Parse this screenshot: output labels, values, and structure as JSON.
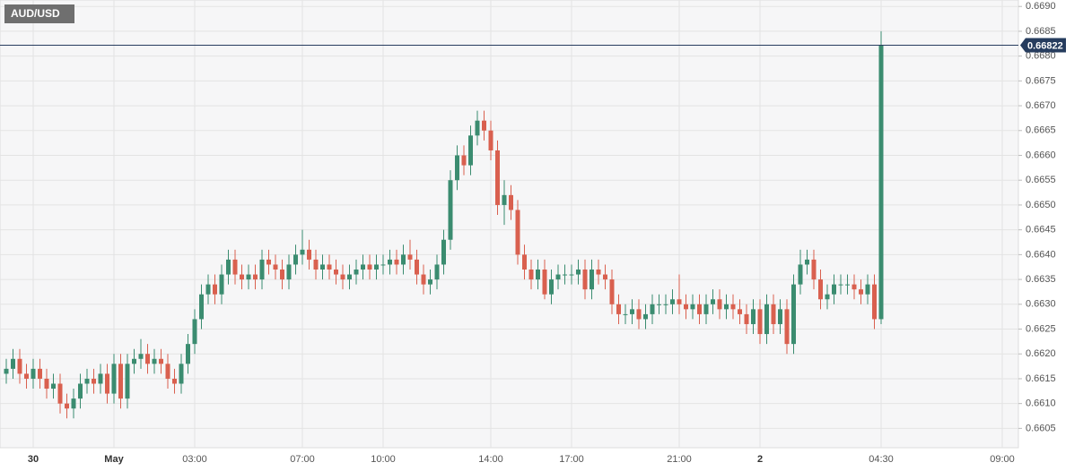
{
  "chart_data": {
    "type": "candlestick",
    "title": "AUD/USD",
    "up_color": "#3b8c70",
    "down_color": "#d9604f",
    "price_line_color": "#263c5e",
    "grid": true,
    "current_price": 0.66822,
    "ylim": [
      0.66011,
      0.66913
    ],
    "yticks": [
      0.6605,
      {
        "value": 0.661,
        "label": "0.6610"
      },
      0.6615,
      {
        "value": 0.662,
        "label": "0.6620"
      },
      0.6625,
      {
        "value": 0.663,
        "label": "0.6630"
      },
      0.6635,
      {
        "value": 0.664,
        "label": "0.6640"
      },
      0.6645,
      {
        "value": 0.665,
        "label": "0.6650"
      },
      0.6655,
      {
        "value": 0.666,
        "label": "0.6660"
      },
      0.6665,
      {
        "value": 0.667,
        "label": "0.6670"
      },
      0.6675,
      {
        "value": 0.668,
        "label": "0.6680"
      },
      0.6685,
      {
        "value": 0.669,
        "label": "0.6690"
      }
    ],
    "categories": [
      null,
      null,
      null,
      null,
      "30",
      null,
      null,
      null,
      null,
      null,
      null,
      null,
      null,
      null,
      null,
      null,
      "May",
      null,
      null,
      null,
      null,
      null,
      null,
      null,
      null,
      null,
      null,
      null,
      "03:00",
      null,
      null,
      null,
      null,
      null,
      null,
      null,
      null,
      null,
      null,
      null,
      null,
      null,
      null,
      null,
      "07:00",
      null,
      null,
      null,
      null,
      null,
      null,
      null,
      null,
      null,
      null,
      null,
      "10:00",
      null,
      null,
      null,
      null,
      null,
      null,
      null,
      null,
      null,
      null,
      null,
      null,
      null,
      null,
      null,
      "14:00",
      null,
      null,
      null,
      null,
      null,
      null,
      null,
      null,
      null,
      null,
      null,
      "17:00",
      null,
      null,
      null,
      null,
      null,
      null,
      null,
      null,
      null,
      null,
      null,
      null,
      null,
      null,
      null,
      "21:00",
      null,
      null,
      null,
      null,
      null,
      null,
      null,
      null,
      null,
      null,
      null,
      "2",
      null,
      null,
      null,
      null,
      null,
      null,
      null,
      null,
      null,
      null,
      null,
      null,
      null,
      null,
      null,
      null,
      null,
      "04:30",
      null,
      null,
      null,
      null,
      null,
      null,
      null,
      null,
      null,
      null,
      null,
      null,
      null,
      null,
      null,
      null,
      null,
      "09:00",
      null
    ],
    "open": [
      0.6616,
      0.6617,
      0.6619,
      0.6616,
      0.6615,
      0.6617,
      0.6615,
      0.6613,
      0.6614,
      0.661,
      0.6609,
      0.6611,
      0.6614,
      0.6615,
      0.6614,
      0.6616,
      0.6612,
      0.6618,
      0.6611,
      0.6618,
      0.6619,
      0.662,
      0.6618,
      0.6619,
      0.6618,
      0.6615,
      0.6614,
      0.6618,
      0.6622,
      0.6627,
      0.6632,
      0.6634,
      0.6632,
      0.6636,
      0.6639,
      0.6636,
      0.6635,
      0.6636,
      0.6635,
      0.6639,
      0.6638,
      0.6637,
      0.6635,
      0.6638,
      0.664,
      0.6641,
      0.6639,
      0.6637,
      0.6638,
      0.6637,
      0.6636,
      0.6635,
      0.6636,
      0.6637,
      0.6638,
      0.6637,
      0.6638,
      0.6638,
      0.6639,
      0.6638,
      0.664,
      0.6639,
      0.6636,
      0.6634,
      0.6635,
      0.6638,
      0.6643,
      0.6655,
      0.666,
      0.6658,
      0.6664,
      0.6667,
      0.6665,
      0.6661,
      0.665,
      0.6652,
      0.6649,
      0.664,
      0.6637,
      0.6635,
      0.6637,
      0.6632,
      0.6635,
      0.6636,
      0.6636,
      0.6636,
      0.6637,
      0.6633,
      0.6637,
      0.6636,
      0.6635,
      0.663,
      0.6628,
      0.6628,
      0.6629,
      0.6627,
      0.6628,
      0.663,
      0.663,
      0.663,
      0.6631,
      0.663,
      0.6629,
      0.663,
      0.6628,
      0.663,
      0.6631,
      0.6629,
      0.663,
      0.6629,
      0.6628,
      0.6626,
      0.6629,
      0.6624,
      0.663,
      0.6626,
      0.6629,
      0.6622,
      0.6634,
      0.6638,
      0.6639,
      0.6635,
      0.6631,
      0.6632,
      0.6634,
      0.6634,
      0.6634,
      0.6633,
      0.6632,
      0.6634,
      0.6627,
      null,
      null,
      null,
      null,
      null,
      null,
      null,
      null,
      null,
      null,
      null,
      null,
      null,
      null,
      null,
      null,
      null,
      null,
      null
    ],
    "high": [
      0.6619,
      0.6621,
      0.6621,
      0.6618,
      0.6619,
      0.6619,
      0.6617,
      0.6616,
      0.6616,
      0.6612,
      0.6613,
      0.6616,
      0.6617,
      0.6617,
      0.6618,
      0.6618,
      0.662,
      0.662,
      0.662,
      0.6621,
      0.6623,
      0.6622,
      0.6621,
      0.6621,
      0.662,
      0.6617,
      0.662,
      0.6624,
      0.6629,
      0.6634,
      0.6636,
      0.6636,
      0.6638,
      0.6641,
      0.6641,
      0.6638,
      0.6638,
      0.6638,
      0.6641,
      0.6641,
      0.664,
      0.6639,
      0.664,
      0.6642,
      0.6645,
      0.6643,
      0.6641,
      0.664,
      0.664,
      0.6639,
      0.6638,
      0.6638,
      0.6639,
      0.664,
      0.664,
      0.664,
      0.664,
      0.6641,
      0.6641,
      0.6642,
      0.6643,
      0.6641,
      0.6638,
      0.6637,
      0.664,
      0.6645,
      0.6657,
      0.6662,
      0.6662,
      0.6666,
      0.6669,
      0.6669,
      0.6667,
      0.6663,
      0.6655,
      0.6654,
      0.6651,
      0.6642,
      0.6639,
      0.6639,
      0.6639,
      0.6637,
      0.6638,
      0.6638,
      0.6638,
      0.6639,
      0.6639,
      0.6639,
      0.6639,
      0.6638,
      0.6637,
      0.6632,
      0.663,
      0.6631,
      0.6631,
      0.663,
      0.6632,
      0.6632,
      0.6632,
      0.6633,
      0.6636,
      0.6632,
      0.6632,
      0.6632,
      0.6632,
      0.6633,
      0.6633,
      0.6632,
      0.6632,
      0.6631,
      0.663,
      0.6631,
      0.6631,
      0.6632,
      0.6632,
      0.6631,
      0.6631,
      0.6636,
      0.6641,
      0.6641,
      0.6641,
      0.6637,
      0.6634,
      0.6636,
      0.6636,
      0.6636,
      0.6636,
      0.6635,
      0.6636,
      0.6636,
      0.6685,
      null,
      null,
      null,
      null,
      null,
      null,
      null,
      null,
      null,
      null,
      null,
      null,
      null,
      null,
      null,
      null,
      null,
      null,
      null
    ],
    "low": [
      0.6614,
      0.6615,
      0.6614,
      0.6613,
      0.6613,
      0.6613,
      0.6611,
      0.6611,
      0.6608,
      0.6607,
      0.6607,
      0.6609,
      0.6612,
      0.6612,
      0.6612,
      0.661,
      0.661,
      0.6609,
      0.6609,
      0.6616,
      0.6617,
      0.6616,
      0.6616,
      0.6616,
      0.6613,
      0.6612,
      0.6612,
      0.6616,
      0.662,
      0.6625,
      0.663,
      0.663,
      0.663,
      0.6634,
      0.6634,
      0.6633,
      0.6633,
      0.6633,
      0.6633,
      0.6636,
      0.6635,
      0.6633,
      0.6633,
      0.6636,
      0.6638,
      0.6637,
      0.6635,
      0.6635,
      0.6635,
      0.6634,
      0.6633,
      0.6633,
      0.6634,
      0.6635,
      0.6635,
      0.6635,
      0.6636,
      0.6636,
      0.6636,
      0.6636,
      0.6637,
      0.6634,
      0.6632,
      0.6632,
      0.6633,
      0.6636,
      0.6641,
      0.6653,
      0.6656,
      0.6656,
      0.6662,
      0.6663,
      0.6659,
      0.6648,
      0.6646,
      0.6647,
      0.6638,
      0.6635,
      0.6633,
      0.6633,
      0.6631,
      0.663,
      0.6633,
      0.6634,
      0.6634,
      0.6634,
      0.6631,
      0.6631,
      0.6634,
      0.6633,
      0.6628,
      0.6626,
      0.6626,
      0.6626,
      0.6625,
      0.6625,
      0.6626,
      0.6628,
      0.6628,
      0.6628,
      0.6628,
      0.6627,
      0.6627,
      0.6626,
      0.6626,
      0.6628,
      0.6627,
      0.6627,
      0.6627,
      0.6626,
      0.6624,
      0.6624,
      0.6622,
      0.6622,
      0.6624,
      0.6624,
      0.662,
      0.662,
      0.6632,
      0.6636,
      0.6633,
      0.6629,
      0.6629,
      0.663,
      0.6632,
      0.6632,
      0.6631,
      0.663,
      0.663,
      0.6625,
      0.6626,
      null,
      null,
      null,
      null,
      null,
      null,
      null,
      null,
      null,
      null,
      null,
      null,
      null,
      null,
      null,
      null,
      null,
      null,
      null
    ],
    "close": [
      0.6617,
      0.6619,
      0.6616,
      0.6615,
      0.6617,
      0.6615,
      0.6613,
      0.6614,
      0.661,
      0.6609,
      0.6611,
      0.6614,
      0.6615,
      0.6614,
      0.6616,
      0.6612,
      0.6618,
      0.6611,
      0.6618,
      0.6619,
      0.662,
      0.6618,
      0.6619,
      0.6618,
      0.6615,
      0.6614,
      0.6618,
      0.6622,
      0.6627,
      0.6632,
      0.6634,
      0.6632,
      0.6636,
      0.6639,
      0.6636,
      0.6635,
      0.6636,
      0.6635,
      0.6639,
      0.6638,
      0.6637,
      0.6635,
      0.6638,
      0.664,
      0.6641,
      0.6639,
      0.6637,
      0.6638,
      0.6637,
      0.6636,
      0.6635,
      0.6636,
      0.6637,
      0.6638,
      0.6637,
      0.6638,
      0.6638,
      0.6639,
      0.6638,
      0.664,
      0.6639,
      0.6636,
      0.6634,
      0.6635,
      0.6638,
      0.6643,
      0.6655,
      0.666,
      0.6658,
      0.6664,
      0.6667,
      0.6665,
      0.6661,
      0.665,
      0.6652,
      0.6649,
      0.664,
      0.6637,
      0.6635,
      0.6637,
      0.6632,
      0.6635,
      0.6636,
      0.6636,
      0.6636,
      0.6637,
      0.6633,
      0.6637,
      0.6636,
      0.6635,
      0.663,
      0.6628,
      0.6628,
      0.6629,
      0.6627,
      0.6628,
      0.663,
      0.663,
      0.663,
      0.6631,
      0.663,
      0.6629,
      0.663,
      0.6628,
      0.663,
      0.6631,
      0.6629,
      0.663,
      0.6629,
      0.6628,
      0.6626,
      0.6629,
      0.6624,
      0.663,
      0.6626,
      0.6629,
      0.6622,
      0.6634,
      0.6638,
      0.6639,
      0.6635,
      0.6631,
      0.6632,
      0.6634,
      0.6634,
      0.6634,
      0.6633,
      0.6632,
      0.6634,
      0.6627,
      0.66822,
      null,
      null,
      null,
      null,
      null,
      null,
      null,
      null,
      null,
      null,
      null,
      null,
      null,
      null,
      null,
      null,
      null,
      null,
      null
    ]
  }
}
